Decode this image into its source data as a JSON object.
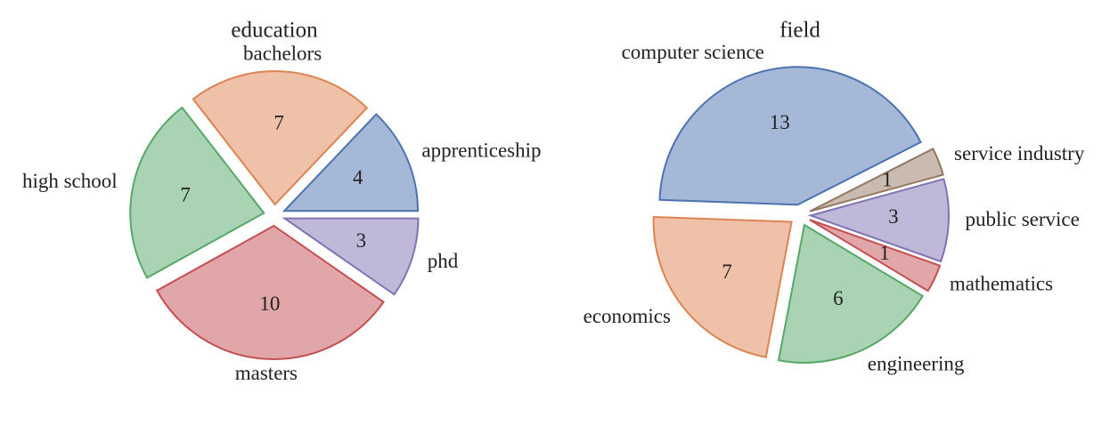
{
  "chart_data": [
    {
      "type": "pie",
      "title": "education",
      "categories": [
        "apprenticeship",
        "bachelors",
        "high school",
        "masters",
        "phd"
      ],
      "values": [
        4,
        7,
        7,
        10,
        3
      ],
      "colors": [
        "#4c72b0",
        "#dd8452",
        "#55a868",
        "#c44e52",
        "#8172b3"
      ],
      "startangle": 0
    },
    {
      "type": "pie",
      "title": "field",
      "categories": [
        "computer science",
        "economics",
        "engineering",
        "mathematics",
        "public service",
        "service industry"
      ],
      "values": [
        13,
        7,
        6,
        1,
        3,
        1
      ],
      "colors": [
        "#4c72b0",
        "#dd8452",
        "#55a868",
        "#c44e52",
        "#8172b3",
        "#937860"
      ],
      "startangle": 27
    }
  ]
}
